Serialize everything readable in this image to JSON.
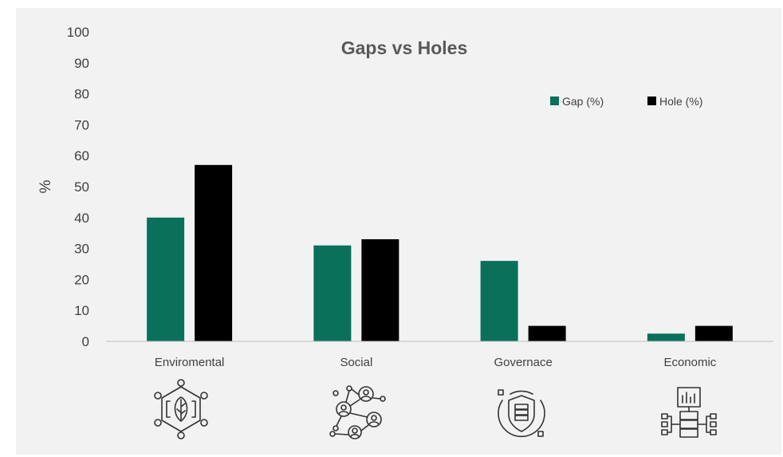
{
  "chart_data": {
    "type": "bar",
    "title": "Gaps vs Holes",
    "xlabel": "",
    "ylabel": "%",
    "ylim": [
      0,
      100
    ],
    "yticks": [
      0,
      10,
      20,
      30,
      40,
      50,
      60,
      70,
      80,
      90,
      100
    ],
    "grid": false,
    "legend_position": "top-right",
    "categories": [
      "Enviromental",
      "Social",
      "Governace",
      "Economic"
    ],
    "series": [
      {
        "name": "Gap (%)",
        "color": "#0a7059",
        "values": [
          40,
          31,
          26,
          2.5
        ]
      },
      {
        "name": "Hole (%)",
        "color": "#000000",
        "values": [
          57,
          33,
          5,
          5
        ]
      }
    ]
  },
  "icons": [
    "environment-leaf-network-icon",
    "social-people-network-icon",
    "governance-shield-server-icon",
    "economic-chart-server-icon"
  ]
}
